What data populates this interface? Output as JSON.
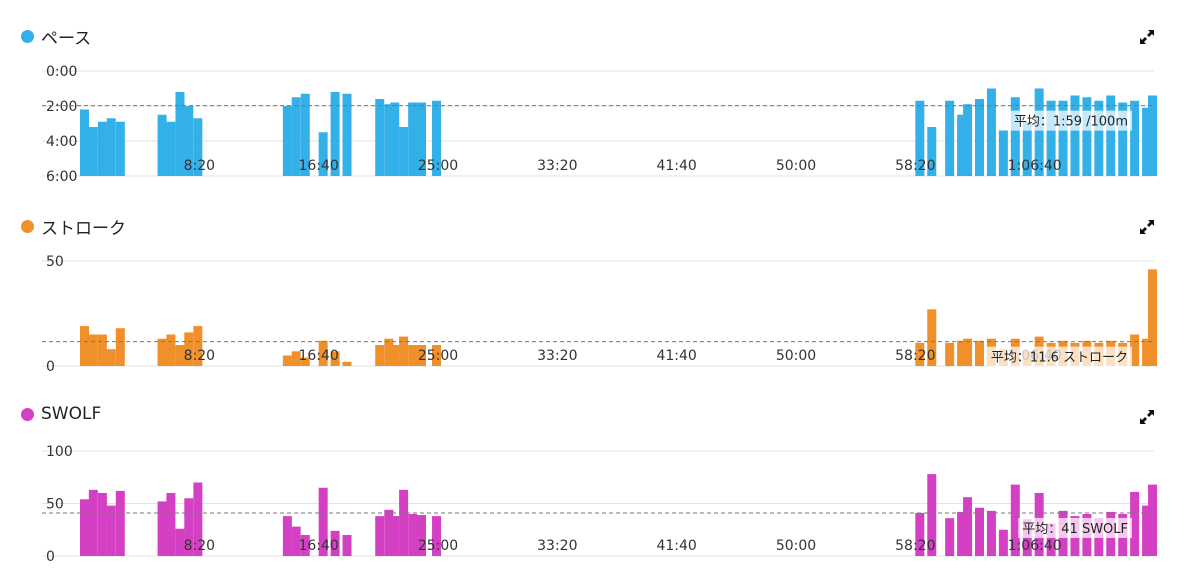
{
  "chart_data": [
    {
      "type": "bar",
      "title": "ペース",
      "color": "#33b0e8",
      "y_inverted": true,
      "ylim": [
        0,
        6
      ],
      "yticks": [
        0,
        2,
        4,
        6
      ],
      "ytick_labels": [
        "0:00",
        "2:00",
        "4:00",
        "6:00"
      ],
      "xlim": [
        0,
        4500
      ],
      "xticks": [
        500,
        1000,
        1500,
        2000,
        2500,
        3000,
        3500,
        4000
      ],
      "xtick_labels": [
        "8:20",
        "16:40",
        "25:00",
        "33:20",
        "41:40",
        "50:00",
        "58:20",
        "1:06:40"
      ],
      "average": 1.98,
      "average_label": "平均：1:59 /100m",
      "x": [
        0,
        37,
        75,
        112,
        150,
        325,
        362,
        400,
        437,
        475,
        850,
        887,
        925,
        1000,
        1050,
        1100,
        1237,
        1275,
        1300,
        1337,
        1375,
        1412,
        1475,
        3500,
        3550,
        3625,
        3675,
        3700,
        3750,
        3800,
        3850,
        3900,
        3950,
        4000,
        4050,
        4100,
        4150,
        4200,
        4250,
        4300,
        4350,
        4400,
        4450,
        4475
      ],
      "values": [
        2.2,
        3.2,
        2.9,
        2.7,
        2.9,
        2.5,
        2.9,
        1.2,
        2.0,
        2.7,
        2.0,
        1.5,
        1.3,
        3.5,
        1.2,
        1.3,
        1.6,
        1.9,
        1.8,
        3.2,
        1.8,
        1.8,
        1.7,
        1.7,
        3.2,
        1.7,
        2.5,
        1.9,
        1.6,
        1.0,
        3.4,
        1.5,
        2.9,
        1.0,
        1.7,
        1.7,
        1.4,
        1.5,
        1.7,
        1.4,
        1.8,
        1.7,
        2.1,
        1.4
      ]
    },
    {
      "type": "bar",
      "title": "ストローク",
      "color": "#f0902a",
      "ylim": [
        0,
        50
      ],
      "yticks": [
        0,
        50
      ],
      "ytick_labels": [
        "0",
        "50"
      ],
      "xlim": [
        0,
        4500
      ],
      "xticks": [
        500,
        1000,
        1500,
        2000,
        2500,
        3000,
        3500,
        4000
      ],
      "xtick_labels": [
        "8:20",
        "16:40",
        "25:00",
        "33:20",
        "41:40",
        "50:00",
        "58:20",
        "1:06:40"
      ],
      "average": 11.6,
      "average_label": "平均：11.6 ストローク",
      "x": [
        0,
        37,
        75,
        112,
        150,
        325,
        362,
        400,
        437,
        475,
        850,
        887,
        925,
        1000,
        1050,
        1100,
        1237,
        1275,
        1300,
        1337,
        1375,
        1412,
        1475,
        3500,
        3550,
        3625,
        3675,
        3700,
        3750,
        3800,
        3850,
        3900,
        3950,
        4000,
        4050,
        4100,
        4150,
        4200,
        4250,
        4300,
        4350,
        4400,
        4450,
        4475
      ],
      "values": [
        19,
        15,
        15,
        8,
        18,
        13,
        15,
        10,
        16,
        19,
        5,
        7,
        4,
        12,
        7,
        2,
        10,
        13,
        10,
        14,
        10,
        10,
        10,
        11,
        27,
        11,
        12,
        13,
        12,
        13,
        8,
        13,
        7,
        14,
        11,
        12,
        11,
        12,
        11,
        12,
        11,
        15,
        13,
        46
      ]
    },
    {
      "type": "bar",
      "title": "SWOLF",
      "color": "#d440c3",
      "ylim": [
        0,
        100
      ],
      "yticks": [
        0,
        50,
        100
      ],
      "ytick_labels": [
        "0",
        "50",
        "100"
      ],
      "xlim": [
        0,
        4500
      ],
      "xticks": [
        500,
        1000,
        1500,
        2000,
        2500,
        3000,
        3500,
        4000
      ],
      "xtick_labels": [
        "8:20",
        "16:40",
        "25:00",
        "33:20",
        "41:40",
        "50:00",
        "58:20",
        "1:06:40"
      ],
      "average": 41,
      "average_label": "平均：41 SWOLF",
      "x": [
        0,
        37,
        75,
        112,
        150,
        325,
        362,
        400,
        437,
        475,
        850,
        887,
        925,
        1000,
        1050,
        1100,
        1237,
        1275,
        1300,
        1337,
        1375,
        1412,
        1475,
        3500,
        3550,
        3625,
        3675,
        3700,
        3750,
        3800,
        3850,
        3900,
        3950,
        4000,
        4050,
        4100,
        4150,
        4200,
        4250,
        4300,
        4350,
        4400,
        4450,
        4475
      ],
      "values": [
        54,
        63,
        60,
        48,
        62,
        52,
        60,
        26,
        55,
        70,
        38,
        28,
        20,
        65,
        24,
        20,
        38,
        44,
        38,
        63,
        40,
        39,
        38,
        41,
        78,
        36,
        42,
        56,
        46,
        43,
        25,
        68,
        35,
        60,
        31,
        43,
        38,
        40,
        36,
        42,
        40,
        61,
        48,
        68
      ]
    }
  ],
  "icons": {
    "expand": "expand-arrows-icon"
  }
}
